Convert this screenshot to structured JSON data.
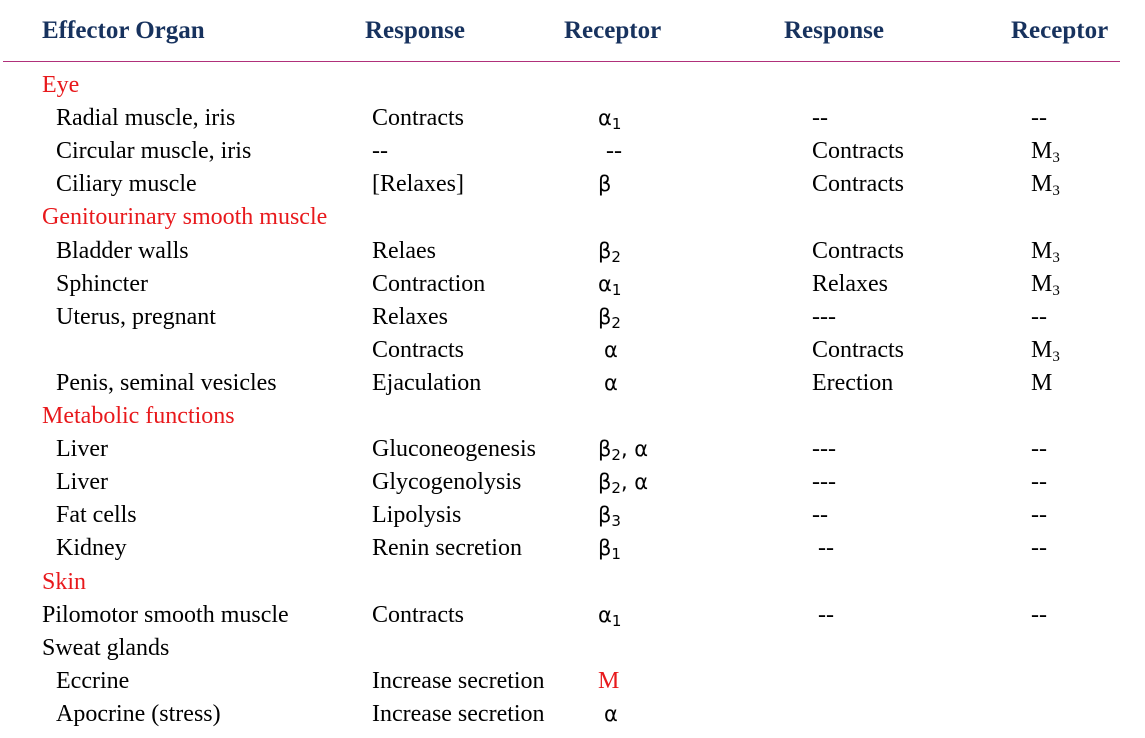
{
  "header": {
    "effector": "Effector Organ",
    "response1": "Response",
    "receptor1": "Receptor",
    "response2": "Response",
    "receptor2": "Receptor"
  },
  "rows": [
    {
      "kind": "section",
      "organ": "Eye"
    },
    {
      "kind": "row",
      "organ": "Radial muscle, iris",
      "resp1": "Contracts",
      "rec1": {
        "base": "α",
        "sub": "1",
        "tail": ""
      },
      "resp2": "--",
      "rec2": {
        "base": "--",
        "sub": "",
        "tail": ""
      }
    },
    {
      "kind": "row",
      "organ": "Circular muscle, iris",
      "resp1": "--",
      "rec1": {
        "base": "--",
        "sub": "",
        "tail": ""
      },
      "resp2": "Contracts",
      "rec2": {
        "base": "M",
        "sub": "3",
        "tail": ""
      }
    },
    {
      "kind": "row",
      "organ": "Ciliary muscle",
      "resp1": "[Relaxes]",
      "rec1": {
        "base": "β",
        "sub": "",
        "tail": ""
      },
      "resp2": "Contracts",
      "rec2": {
        "base": "M",
        "sub": "3",
        "tail": ""
      }
    },
    {
      "kind": "section",
      "organ": "Genitourinary smooth muscle"
    },
    {
      "kind": "row",
      "organ": "Bladder walls",
      "resp1": "Relaes",
      "rec1": {
        "base": "β",
        "sub": "2",
        "tail": ""
      },
      "resp2": "Contracts",
      "rec2": {
        "base": "M",
        "sub": "3",
        "tail": ""
      }
    },
    {
      "kind": "row",
      "organ": "Sphincter",
      "resp1": "Contraction",
      "rec1": {
        "base": "α",
        "sub": "1",
        "tail": ""
      },
      "resp2": "Relaxes",
      "rec2": {
        "base": "M",
        "sub": "3",
        "tail": ""
      }
    },
    {
      "kind": "row",
      "organ": "Uterus, pregnant",
      "resp1": "Relaxes",
      "rec1": {
        "base": "β",
        "sub": "2",
        "tail": ""
      },
      "resp2": "---",
      "rec2": {
        "base": "--",
        "sub": "",
        "tail": ""
      }
    },
    {
      "kind": "row",
      "organ": "",
      "resp1": "Contracts",
      "rec1": {
        "base": "α",
        "sub": "",
        "tail": ""
      },
      "resp2": "Contracts",
      "rec2": {
        "base": "M",
        "sub": "3",
        "tail": ""
      }
    },
    {
      "kind": "row",
      "organ": "Penis, seminal vesicles",
      "resp1": "Ejaculation",
      "rec1": {
        "base": "α",
        "sub": "",
        "tail": ""
      },
      "resp2": "Erection",
      "rec2": {
        "base": "M",
        "sub": "",
        "tail": ""
      }
    },
    {
      "kind": "section",
      "organ": "Metabolic functions"
    },
    {
      "kind": "row",
      "organ": "Liver",
      "resp1": "Gluconeogenesis",
      "rec1": {
        "base": "β",
        "sub": "2",
        "tail": ", α"
      },
      "resp2": "---",
      "rec2": {
        "base": "--",
        "sub": "",
        "tail": ""
      }
    },
    {
      "kind": "row",
      "organ": "Liver",
      "resp1": "Glycogenolysis",
      "rec1": {
        "base": "β",
        "sub": "2",
        "tail": ", α"
      },
      "resp2": "---",
      "rec2": {
        "base": "--",
        "sub": "",
        "tail": ""
      }
    },
    {
      "kind": "row",
      "organ": "Fat cells",
      "resp1": "Lipolysis",
      "rec1": {
        "base": "β",
        "sub": "3",
        "tail": ""
      },
      "resp2": "--",
      "rec2": {
        "base": "--",
        "sub": "",
        "tail": ""
      }
    },
    {
      "kind": "row",
      "organ": "Kidney",
      "resp1": "Renin secretion",
      "rec1": {
        "base": "β",
        "sub": "1",
        "tail": ""
      },
      "resp2": "--",
      "rec2": {
        "base": "--",
        "sub": "",
        "tail": ""
      }
    },
    {
      "kind": "section",
      "organ": "Skin"
    },
    {
      "kind": "row",
      "organ": "Pilomotor smooth muscle",
      "flush": true,
      "resp1": "Contracts",
      "rec1": {
        "base": "α",
        "sub": "1",
        "tail": ""
      },
      "resp2": "--",
      "rec2": {
        "base": "--",
        "sub": "",
        "tail": ""
      }
    },
    {
      "kind": "row",
      "organ": "Sweat glands",
      "flush": true,
      "resp1": "",
      "rec1": {
        "base": "",
        "sub": "",
        "tail": ""
      },
      "resp2": "",
      "rec2": {
        "base": "",
        "sub": "",
        "tail": ""
      }
    },
    {
      "kind": "row",
      "organ": "Eccrine",
      "resp1": "Increase secretion",
      "rec1": {
        "base": "M",
        "sub": "",
        "tail": "",
        "highlight": true,
        "serif": true
      },
      "resp2": "",
      "rec2": {
        "base": "",
        "sub": "",
        "tail": ""
      }
    },
    {
      "kind": "row",
      "organ": "Apocrine (stress)",
      "resp1": "Increase secretion",
      "rec1": {
        "base": "α",
        "sub": "",
        "tail": ""
      },
      "resp2": "",
      "rec2": {
        "base": "",
        "sub": "",
        "tail": ""
      }
    }
  ],
  "colors": {
    "header": "#17325e",
    "section": "#e8191c",
    "rule": "#b0307a"
  }
}
